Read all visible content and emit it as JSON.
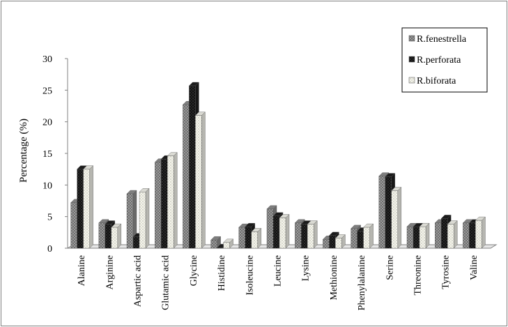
{
  "chart_data": {
    "type": "bar",
    "title": "",
    "xlabel": "",
    "ylabel": "Percentage (%)",
    "ylim": [
      0,
      30
    ],
    "yticks": [
      0,
      5,
      10,
      15,
      20,
      25,
      30
    ],
    "grid": false,
    "legend_position": "top-right",
    "categories": [
      "Alanine",
      "Arginine",
      "Aspartic acid",
      "Glutamic acid",
      "Glycine",
      "Histidine",
      "Isoleucine",
      "Leucine",
      "Lysine",
      "Methionine",
      "Phenylalanine",
      "Serine",
      "Threonine",
      "Tyrosine",
      "Valine"
    ],
    "series": [
      {
        "name": "R.fenestrella",
        "color": "#8c8c8c",
        "pattern": "checker",
        "values": [
          7.2,
          4.0,
          8.6,
          13.6,
          22.7,
          1.3,
          3.3,
          6.2,
          4.0,
          1.4,
          3.1,
          11.4,
          3.4,
          4.0,
          4.0
        ]
      },
      {
        "name": "R.perforata",
        "color": "#1e1e1e",
        "pattern": "dots-dark",
        "values": [
          12.5,
          3.8,
          1.8,
          14.1,
          25.7,
          0.1,
          3.4,
          5.1,
          3.8,
          2.0,
          2.7,
          11.3,
          3.4,
          4.7,
          4.0
        ]
      },
      {
        "name": "R.biforata",
        "color": "#f2f2ea",
        "pattern": "dots-light",
        "values": [
          12.5,
          3.3,
          8.9,
          14.6,
          21.0,
          0.9,
          2.6,
          4.8,
          3.8,
          1.6,
          3.3,
          9.1,
          3.4,
          3.8,
          4.4
        ]
      }
    ]
  }
}
